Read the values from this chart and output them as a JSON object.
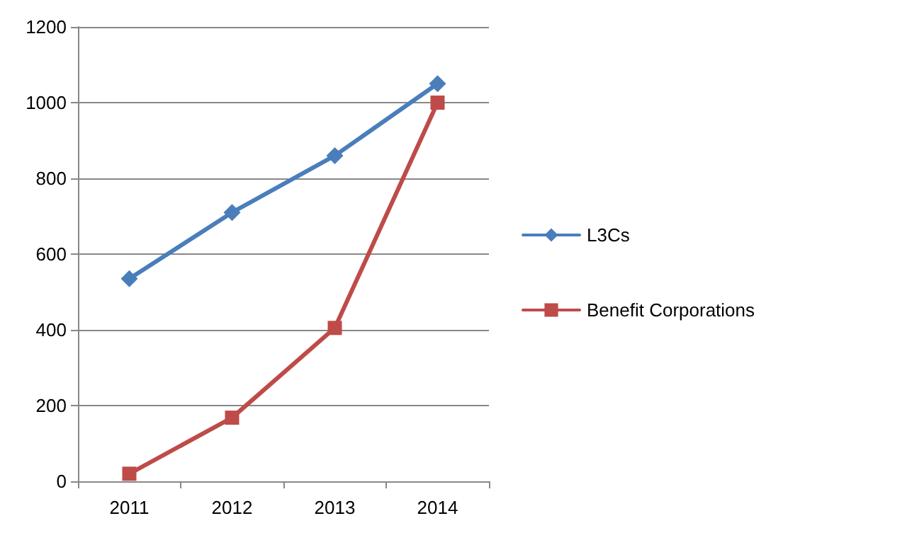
{
  "chart_data": {
    "type": "line",
    "categories": [
      "2011",
      "2012",
      "2013",
      "2014"
    ],
    "series": [
      {
        "name": "L3Cs",
        "color": "#4a7ebb",
        "marker": "diamond",
        "values": [
          535,
          710,
          860,
          1050
        ]
      },
      {
        "name": "Benefit Corporations",
        "color": "#be4b48",
        "marker": "square",
        "values": [
          20,
          168,
          405,
          1000
        ]
      }
    ],
    "ylim": [
      0,
      1200
    ],
    "yticks": [
      0,
      200,
      400,
      600,
      800,
      1000,
      1200
    ],
    "grid": "y",
    "legend": "right",
    "line_style": "solid"
  }
}
